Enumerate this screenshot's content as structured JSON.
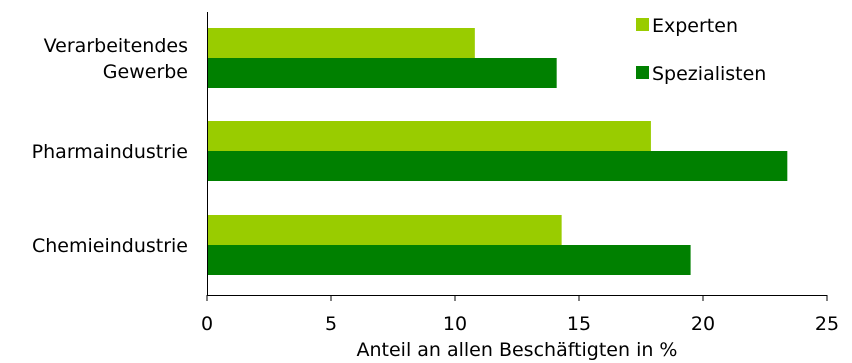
{
  "chart_data": {
    "type": "bar",
    "orientation": "horizontal",
    "categories": [
      "Verarbeitendes Gewerbe",
      "Pharmaindustrie",
      "Chemieindustrie"
    ],
    "category_label_lines": [
      [
        "Verarbeitendes",
        "Gewerbe"
      ],
      [
        "Pharmaindustrie"
      ],
      [
        "Chemieindustrie"
      ]
    ],
    "series": [
      {
        "name": "Experten",
        "color": "#99cc00",
        "values": [
          10.8,
          17.9,
          14.3
        ]
      },
      {
        "name": "Spezialisten",
        "color": "#008000",
        "values": [
          14.1,
          23.4,
          19.5
        ]
      }
    ],
    "xlabel": "Anteil an allen Beschäftigten in %",
    "xlim": [
      0,
      25
    ],
    "xticks": [
      0,
      5,
      10,
      15,
      20,
      25
    ],
    "grid": false,
    "legend_position": "top-right"
  }
}
